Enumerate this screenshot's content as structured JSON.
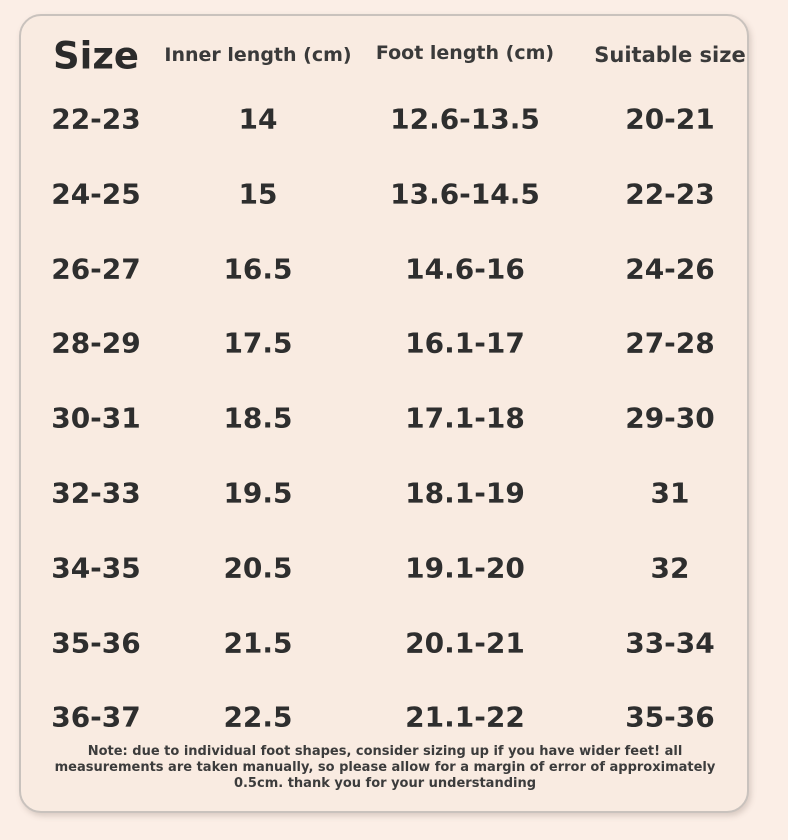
{
  "chart_data": {
    "type": "table",
    "columns": [
      "Size",
      "Inner length (cm)",
      "Foot length (cm)",
      "Suitable size"
    ],
    "rows": [
      [
        "22-23",
        "14",
        "12.6-13.5",
        "20-21"
      ],
      [
        "24-25",
        "15",
        "13.6-14.5",
        "22-23"
      ],
      [
        "26-27",
        "16.5",
        "14.6-16",
        "24-26"
      ],
      [
        "28-29",
        "17.5",
        "16.1-17",
        "27-28"
      ],
      [
        "30-31",
        "18.5",
        "17.1-18",
        "29-30"
      ],
      [
        "32-33",
        "19.5",
        "18.1-19",
        "31"
      ],
      [
        "34-35",
        "20.5",
        "19.1-20",
        "32"
      ],
      [
        "35-36",
        "21.5",
        "20.1-21",
        "33-34"
      ],
      [
        "36-37",
        "22.5",
        "21.1-22",
        "35-36"
      ]
    ],
    "note": "Note: due to individual foot shapes, consider sizing up if you have wider feet! all measurements are taken manually, so please allow for a margin of error of approximately 0.5cm. thank you for your understanding"
  },
  "colors": {
    "background": "#fbeee6",
    "card": "#f9ebe1",
    "border": "#c9c2bd",
    "text": "#2e2e2e"
  }
}
